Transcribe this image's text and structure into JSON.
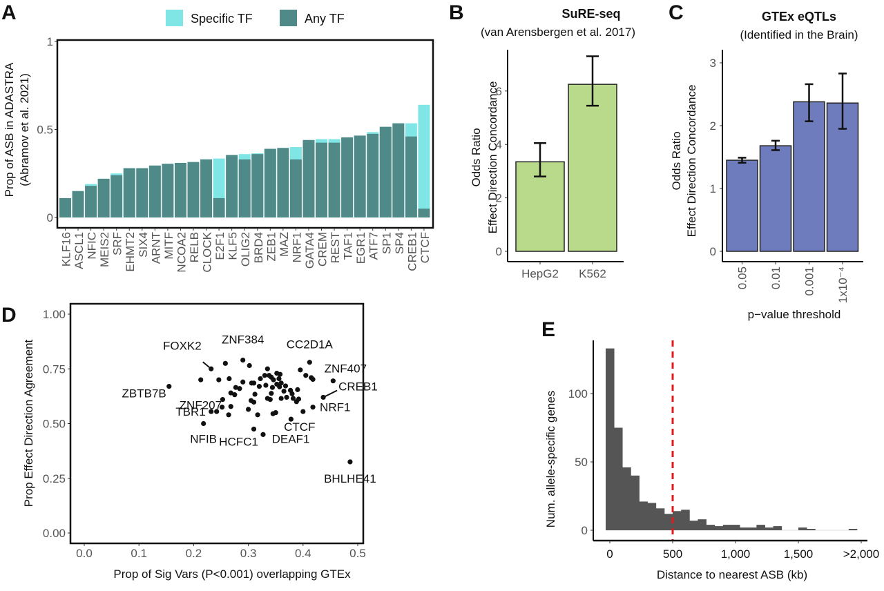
{
  "panels": {
    "A": "A",
    "B": "B",
    "C": "C",
    "D": "D",
    "E": "E"
  },
  "chart_data": [
    {
      "panel": "A",
      "type": "bar",
      "stacked_overlay": true,
      "title": "",
      "xlabel": "",
      "ylabel": "Prop of ASB in ADASTRA",
      "ylabel2": "(Abramov et al. 2021)",
      "ylim": [
        0,
        1
      ],
      "yticks": [
        "0",
        "0.5",
        "1"
      ],
      "ytick_values": [
        0,
        0.5,
        1
      ],
      "legend": {
        "position": "top",
        "entries": [
          {
            "name": "Specific TF",
            "color": "#7fe5e5"
          },
          {
            "name": "Any TF",
            "color": "#4f8a88"
          }
        ]
      },
      "categories": [
        "KLF16",
        "ASCL1",
        "NFIC",
        "MEIS2",
        "SRF",
        "EHMT2",
        "SIX4",
        "ARNT",
        "MITF",
        "NCOA2",
        "RELB",
        "CLOCK",
        "E2F1",
        "KLF5",
        "OLIG2",
        "BRD4",
        "ZEB1",
        "MAZ",
        "NRF1",
        "GATA4",
        "CREM",
        "REST",
        "TAF1",
        "EGR1",
        "ATF7",
        "SP1",
        "SP4",
        "CREB1",
        "CTCF"
      ],
      "series": [
        {
          "name": "Specific TF",
          "values": [
            0.11,
            0.15,
            0.19,
            0.22,
            0.25,
            0.28,
            0.28,
            0.295,
            0.305,
            0.31,
            0.315,
            0.33,
            0.335,
            0.355,
            0.36,
            0.365,
            0.39,
            0.395,
            0.4,
            0.44,
            0.445,
            0.445,
            0.455,
            0.465,
            0.485,
            0.515,
            0.535,
            0.535,
            0.64
          ]
        },
        {
          "name": "Any TF",
          "values": [
            0.11,
            0.15,
            0.18,
            0.22,
            0.24,
            0.28,
            0.28,
            0.295,
            0.305,
            0.31,
            0.315,
            0.33,
            0.11,
            0.355,
            0.33,
            0.36,
            0.39,
            0.395,
            0.33,
            0.44,
            0.425,
            0.425,
            0.455,
            0.465,
            0.475,
            0.515,
            0.535,
            0.46,
            0.05
          ]
        }
      ]
    },
    {
      "panel": "B",
      "type": "bar",
      "title": "SuRE-seq",
      "subtitle": "(van Arensbergen et al. 2017)",
      "xlabel": "",
      "ylabel": "Odds Ratio",
      "ylabel2": "Effect Direction Concordance",
      "ylim": [
        0,
        7.6
      ],
      "yticks": [
        "0",
        "2",
        "4",
        "6"
      ],
      "ytick_values": [
        0,
        2,
        4,
        6
      ],
      "categories": [
        "HepG2",
        "K562"
      ],
      "values": [
        3.35,
        6.25
      ],
      "error_low": [
        2.8,
        5.45
      ],
      "error_high": [
        4.05,
        7.3
      ],
      "color": "#b9da8a"
    },
    {
      "panel": "C",
      "type": "bar",
      "title": "GTEx eQTLs",
      "subtitle": "(Identified in the Brain)",
      "xlabel": "p−value threshold",
      "ylabel": "Odds Ratio",
      "ylabel2": "Effect Direction Concordance",
      "ylim": [
        0,
        3.1
      ],
      "yticks": [
        "0",
        "1",
        "2",
        "3"
      ],
      "ytick_values": [
        0,
        1,
        2,
        3
      ],
      "categories": [
        "0.05",
        "0.01",
        "0.001",
        "1x10⁻⁴"
      ],
      "values": [
        1.45,
        1.68,
        2.38,
        2.36
      ],
      "error_low": [
        1.41,
        1.61,
        2.07,
        1.95
      ],
      "error_high": [
        1.49,
        1.76,
        2.66,
        2.83
      ],
      "color": "#6e7bbd"
    },
    {
      "panel": "D",
      "type": "scatter",
      "title": "",
      "xlabel": "Prop of Sig Vars (P<0.001) overlapping GTEx",
      "ylabel": "Prop Effect Direction Agreement",
      "xlim": [
        -0.03,
        0.53
      ],
      "ylim": [
        -0.05,
        1.02
      ],
      "xticks": [
        "0.0",
        "0.1",
        "0.2",
        "0.3",
        "0.4",
        "0.5"
      ],
      "xtick_values": [
        0,
        0.1,
        0.2,
        0.3,
        0.4,
        0.5
      ],
      "yticks": [
        "0.00",
        "0.25",
        "0.50",
        "0.75",
        "1.00"
      ],
      "ytick_values": [
        0,
        0.25,
        0.5,
        0.75,
        1.0
      ],
      "labeled_points": [
        {
          "label": "FOXK2",
          "x": 0.232,
          "y": 0.75
        },
        {
          "label": "ZNF384",
          "x": 0.29,
          "y": 0.79
        },
        {
          "label": "CC2D1A",
          "x": 0.412,
          "y": 0.78
        },
        {
          "label": "ZNF407",
          "x": 0.455,
          "y": 0.695
        },
        {
          "label": "CREB1",
          "x": 0.437,
          "y": 0.62
        },
        {
          "label": "ZBTB7B",
          "x": 0.155,
          "y": 0.67
        },
        {
          "label": "ZNF207",
          "x": 0.253,
          "y": 0.61
        },
        {
          "label": "TBR1",
          "x": 0.232,
          "y": 0.555
        },
        {
          "label": "NFIB",
          "x": 0.218,
          "y": 0.5
        },
        {
          "label": "NRF1",
          "x": 0.418,
          "y": 0.575
        },
        {
          "label": "CTCF",
          "x": 0.4,
          "y": 0.555
        },
        {
          "label": "HCFC1",
          "x": 0.31,
          "y": 0.475
        },
        {
          "label": "DEAF1",
          "x": 0.327,
          "y": 0.45
        },
        {
          "label": "BHLHE41",
          "x": 0.486,
          "y": 0.325
        }
      ],
      "points": [
        {
          "x": 0.258,
          "y": 0.775
        },
        {
          "x": 0.302,
          "y": 0.765
        },
        {
          "x": 0.335,
          "y": 0.75
        },
        {
          "x": 0.213,
          "y": 0.7
        },
        {
          "x": 0.246,
          "y": 0.7
        },
        {
          "x": 0.265,
          "y": 0.705
        },
        {
          "x": 0.33,
          "y": 0.72
        },
        {
          "x": 0.338,
          "y": 0.72
        },
        {
          "x": 0.352,
          "y": 0.73
        },
        {
          "x": 0.358,
          "y": 0.725
        },
        {
          "x": 0.322,
          "y": 0.705
        },
        {
          "x": 0.346,
          "y": 0.7
        },
        {
          "x": 0.342,
          "y": 0.712
        },
        {
          "x": 0.29,
          "y": 0.69
        },
        {
          "x": 0.306,
          "y": 0.685
        },
        {
          "x": 0.31,
          "y": 0.685
        },
        {
          "x": 0.356,
          "y": 0.705
        },
        {
          "x": 0.352,
          "y": 0.68
        },
        {
          "x": 0.36,
          "y": 0.685
        },
        {
          "x": 0.395,
          "y": 0.745
        },
        {
          "x": 0.405,
          "y": 0.72
        },
        {
          "x": 0.415,
          "y": 0.71
        },
        {
          "x": 0.418,
          "y": 0.702
        },
        {
          "x": 0.277,
          "y": 0.665
        },
        {
          "x": 0.284,
          "y": 0.66
        },
        {
          "x": 0.32,
          "y": 0.67
        },
        {
          "x": 0.332,
          "y": 0.675
        },
        {
          "x": 0.344,
          "y": 0.665
        },
        {
          "x": 0.357,
          "y": 0.668
        },
        {
          "x": 0.368,
          "y": 0.672
        },
        {
          "x": 0.268,
          "y": 0.64
        },
        {
          "x": 0.275,
          "y": 0.632
        },
        {
          "x": 0.312,
          "y": 0.634
        },
        {
          "x": 0.342,
          "y": 0.638
        },
        {
          "x": 0.365,
          "y": 0.648
        },
        {
          "x": 0.377,
          "y": 0.652
        },
        {
          "x": 0.38,
          "y": 0.636
        },
        {
          "x": 0.39,
          "y": 0.655
        },
        {
          "x": 0.305,
          "y": 0.605
        },
        {
          "x": 0.31,
          "y": 0.598
        },
        {
          "x": 0.34,
          "y": 0.61
        },
        {
          "x": 0.37,
          "y": 0.62
        },
        {
          "x": 0.382,
          "y": 0.615
        },
        {
          "x": 0.388,
          "y": 0.6
        },
        {
          "x": 0.392,
          "y": 0.612
        },
        {
          "x": 0.36,
          "y": 0.615
        },
        {
          "x": 0.335,
          "y": 0.615
        },
        {
          "x": 0.3,
          "y": 0.565
        },
        {
          "x": 0.264,
          "y": 0.54
        },
        {
          "x": 0.317,
          "y": 0.54
        },
        {
          "x": 0.345,
          "y": 0.545
        },
        {
          "x": 0.35,
          "y": 0.55
        },
        {
          "x": 0.378,
          "y": 0.52
        },
        {
          "x": 0.242,
          "y": 0.555
        },
        {
          "x": 0.268,
          "y": 0.578
        },
        {
          "x": 0.252,
          "y": 0.575
        }
      ],
      "point_color": "#111111"
    },
    {
      "panel": "E",
      "type": "bar",
      "histogram": true,
      "title": "",
      "xlabel": "Distance to nearest ASB (kb)",
      "ylabel": "Num. allele-specific genes",
      "ylim": [
        -5,
        140
      ],
      "yticks": [
        "0",
        "50",
        "100"
      ],
      "ytick_values": [
        0,
        50,
        100
      ],
      "xticks": [
        "0",
        "500",
        "1,000",
        "1,500",
        ">2,000"
      ],
      "xtick_values": [
        0,
        500,
        1000,
        1500,
        2000
      ],
      "bin_width_kb": 66.7,
      "bin_starts_kb": [
        -33,
        33,
        100,
        167,
        233,
        300,
        367,
        433,
        500,
        567,
        633,
        700,
        767,
        833,
        900,
        967,
        1033,
        1100,
        1167,
        1233,
        1300,
        1367,
        1433,
        1500,
        1567,
        1633,
        1700,
        1767,
        1833,
        1900
      ],
      "counts": [
        133,
        75,
        46,
        40,
        21,
        20,
        16,
        12,
        14,
        15,
        7,
        8,
        4,
        3,
        4,
        4,
        2,
        2,
        4,
        2,
        3,
        0,
        0,
        2,
        1,
        0,
        0,
        0,
        0,
        1
      ],
      "bar_color": "#555555",
      "threshold_line": {
        "x": 500,
        "color": "#e31a1c",
        "style": "dashed"
      }
    }
  ]
}
